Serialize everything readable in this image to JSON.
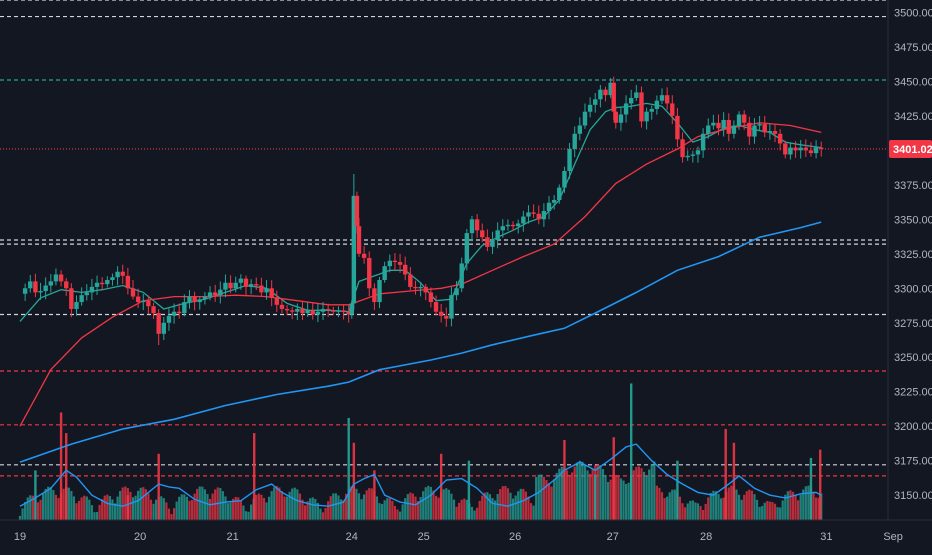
{
  "chart_data": {
    "type": "candlestick",
    "x_ticks": [
      "19",
      "20",
      "21",
      "24",
      "25",
      "26",
      "27",
      "28",
      "31",
      "Sep"
    ],
    "y_ticks": [
      "3150.00",
      "3175.00",
      "3200.00",
      "3225.00",
      "3250.00",
      "3275.00",
      "3300.00",
      "3325.00",
      "3350.00",
      "3375.00",
      "3400.00",
      "3425.00",
      "3450.00",
      "3475.00",
      "3500.00"
    ],
    "ylim": [
      3132,
      3509
    ],
    "last_price": "3401.02",
    "horizontal_levels": [
      {
        "value": 3509,
        "style": "dashed",
        "color": "#d1d4dc"
      },
      {
        "value": 3497,
        "style": "dashed",
        "color": "#d1d4dc"
      },
      {
        "value": 3451,
        "style": "dashed",
        "color": "#26a69a"
      },
      {
        "value": 3401.02,
        "style": "dotted",
        "color": "#f23645"
      },
      {
        "value": 3335,
        "style": "dashed",
        "color": "#d1d4dc"
      },
      {
        "value": 3332,
        "style": "dashed",
        "color": "#d1d4dc"
      },
      {
        "value": 3281,
        "style": "dashed",
        "color": "#d1d4dc"
      },
      {
        "value": 3240,
        "style": "dashed",
        "color": "#f23645"
      },
      {
        "value": 3201,
        "style": "dashed",
        "color": "#f23645"
      },
      {
        "value": 3172,
        "style": "dashed",
        "color": "#d1d4dc"
      },
      {
        "value": 3164,
        "style": "dashed",
        "color": "#f23645"
      }
    ],
    "price_path": [
      [
        0,
        3296
      ],
      [
        5,
        3300
      ],
      [
        10,
        3305
      ],
      [
        15,
        3297
      ],
      [
        20,
        3298
      ],
      [
        25,
        3302
      ],
      [
        30,
        3305
      ],
      [
        35,
        3310
      ],
      [
        40,
        3305
      ],
      [
        45,
        3300
      ],
      [
        50,
        3285
      ],
      [
        55,
        3290
      ],
      [
        60,
        3295
      ],
      [
        65,
        3297
      ],
      [
        70,
        3301
      ],
      [
        75,
        3304
      ],
      [
        80,
        3303
      ],
      [
        85,
        3306
      ],
      [
        90,
        3308
      ],
      [
        95,
        3312
      ],
      [
        100,
        3309
      ],
      [
        105,
        3300
      ],
      [
        110,
        3294
      ],
      [
        115,
        3290
      ],
      [
        120,
        3291
      ],
      [
        125,
        3287
      ],
      [
        130,
        3282
      ],
      [
        135,
        3267
      ],
      [
        140,
        3275
      ],
      [
        145,
        3280
      ],
      [
        150,
        3283
      ],
      [
        155,
        3282
      ],
      [
        160,
        3290
      ],
      [
        165,
        3294
      ],
      [
        170,
        3290
      ],
      [
        175,
        3292
      ],
      [
        180,
        3294
      ],
      [
        185,
        3297
      ],
      [
        190,
        3295
      ],
      [
        195,
        3299
      ],
      [
        200,
        3304
      ],
      [
        205,
        3300
      ],
      [
        210,
        3304
      ],
      [
        215,
        3307
      ],
      [
        220,
        3301
      ],
      [
        225,
        3303
      ],
      [
        230,
        3302
      ],
      [
        235,
        3297
      ],
      [
        240,
        3300
      ],
      [
        245,
        3293
      ],
      [
        250,
        3288
      ],
      [
        255,
        3285
      ],
      [
        260,
        3284
      ],
      [
        265,
        3283
      ],
      [
        270,
        3285
      ],
      [
        275,
        3282
      ],
      [
        280,
        3284
      ],
      [
        285,
        3281
      ],
      [
        290,
        3283
      ],
      [
        295,
        3285
      ],
      [
        300,
        3284
      ],
      [
        305,
        3283
      ],
      [
        310,
        3284
      ],
      [
        315,
        3283
      ],
      [
        320,
        3281
      ],
      [
        323,
        3289
      ],
      [
        325,
        3367
      ],
      [
        328,
        3345
      ],
      [
        330,
        3325
      ],
      [
        335,
        3322
      ],
      [
        340,
        3300
      ],
      [
        345,
        3290
      ],
      [
        350,
        3306
      ],
      [
        355,
        3316
      ],
      [
        360,
        3320
      ],
      [
        365,
        3319
      ],
      [
        370,
        3317
      ],
      [
        375,
        3310
      ],
      [
        380,
        3301
      ],
      [
        385,
        3300
      ],
      [
        390,
        3301
      ],
      [
        395,
        3297
      ],
      [
        400,
        3290
      ],
      [
        405,
        3283
      ],
      [
        410,
        3280
      ],
      [
        415,
        3278
      ],
      [
        420,
        3295
      ],
      [
        425,
        3300
      ],
      [
        430,
        3318
      ],
      [
        435,
        3340
      ],
      [
        440,
        3350
      ],
      [
        445,
        3342
      ],
      [
        450,
        3337
      ],
      [
        455,
        3330
      ],
      [
        460,
        3335
      ],
      [
        465,
        3342
      ],
      [
        470,
        3345
      ],
      [
        475,
        3346
      ],
      [
        480,
        3345
      ],
      [
        485,
        3347
      ],
      [
        490,
        3352
      ],
      [
        495,
        3355
      ],
      [
        500,
        3354
      ],
      [
        505,
        3350
      ],
      [
        510,
        3356
      ],
      [
        515,
        3362
      ],
      [
        520,
        3364
      ],
      [
        525,
        3373
      ],
      [
        530,
        3385
      ],
      [
        535,
        3401
      ],
      [
        540,
        3412
      ],
      [
        545,
        3418
      ],
      [
        550,
        3428
      ],
      [
        555,
        3433
      ],
      [
        560,
        3437
      ],
      [
        565,
        3444
      ],
      [
        570,
        3440
      ],
      [
        575,
        3449
      ],
      [
        578,
        3428
      ],
      [
        580,
        3420
      ],
      [
        585,
        3426
      ],
      [
        590,
        3434
      ],
      [
        595,
        3438
      ],
      [
        600,
        3442
      ],
      [
        605,
        3421
      ],
      [
        610,
        3428
      ],
      [
        615,
        3430
      ],
      [
        620,
        3436
      ],
      [
        625,
        3440
      ],
      [
        630,
        3434
      ],
      [
        635,
        3425
      ],
      [
        640,
        3408
      ],
      [
        645,
        3395
      ],
      [
        650,
        3396
      ],
      [
        655,
        3397
      ],
      [
        660,
        3400
      ],
      [
        665,
        3412
      ],
      [
        670,
        3418
      ],
      [
        675,
        3420
      ],
      [
        680,
        3416
      ],
      [
        685,
        3422
      ],
      [
        690,
        3412
      ],
      [
        695,
        3418
      ],
      [
        700,
        3426
      ],
      [
        705,
        3420
      ],
      [
        710,
        3410
      ],
      [
        715,
        3418
      ],
      [
        720,
        3419
      ],
      [
        725,
        3413
      ],
      [
        730,
        3414
      ],
      [
        735,
        3412
      ],
      [
        740,
        3405
      ],
      [
        745,
        3397
      ],
      [
        750,
        3402
      ],
      [
        755,
        3400
      ],
      [
        760,
        3402
      ],
      [
        765,
        3400
      ],
      [
        770,
        3398
      ],
      [
        775,
        3402
      ],
      [
        780,
        3401.02
      ]
    ],
    "series": [
      {
        "color": "#26a69a",
        "points": [
          [
            0,
            3276
          ],
          [
            20,
            3293
          ],
          [
            40,
            3299
          ],
          [
            60,
            3297
          ],
          [
            80,
            3299
          ],
          [
            100,
            3302
          ],
          [
            120,
            3297
          ],
          [
            140,
            3285
          ],
          [
            160,
            3289
          ],
          [
            180,
            3292
          ],
          [
            200,
            3297
          ],
          [
            220,
            3302
          ],
          [
            240,
            3300
          ],
          [
            260,
            3289
          ],
          [
            280,
            3284
          ],
          [
            300,
            3284
          ],
          [
            320,
            3283
          ],
          [
            330,
            3305
          ],
          [
            345,
            3309
          ],
          [
            360,
            3313
          ],
          [
            375,
            3313
          ],
          [
            390,
            3304
          ],
          [
            405,
            3291
          ],
          [
            420,
            3292
          ],
          [
            435,
            3318
          ],
          [
            450,
            3331
          ],
          [
            465,
            3337
          ],
          [
            480,
            3342
          ],
          [
            495,
            3348
          ],
          [
            510,
            3352
          ],
          [
            525,
            3364
          ],
          [
            540,
            3390
          ],
          [
            555,
            3415
          ],
          [
            570,
            3428
          ],
          [
            580,
            3431
          ],
          [
            595,
            3432
          ],
          [
            610,
            3434
          ],
          [
            625,
            3432
          ],
          [
            640,
            3420
          ],
          [
            655,
            3406
          ],
          [
            670,
            3410
          ],
          [
            685,
            3416
          ],
          [
            700,
            3418
          ],
          [
            715,
            3415
          ],
          [
            730,
            3413
          ],
          [
            745,
            3406
          ],
          [
            760,
            3404
          ],
          [
            780,
            3402
          ]
        ]
      },
      {
        "color": "#f23645",
        "points": [
          [
            0,
            3200
          ],
          [
            30,
            3241
          ],
          [
            60,
            3264
          ],
          [
            90,
            3279
          ],
          [
            120,
            3291
          ],
          [
            150,
            3294
          ],
          [
            180,
            3294
          ],
          [
            210,
            3295
          ],
          [
            240,
            3294
          ],
          [
            270,
            3291
          ],
          [
            300,
            3288
          ],
          [
            320,
            3288
          ],
          [
            350,
            3296
          ],
          [
            380,
            3298
          ],
          [
            410,
            3300
          ],
          [
            430,
            3303
          ],
          [
            460,
            3313
          ],
          [
            490,
            3323
          ],
          [
            520,
            3332
          ],
          [
            550,
            3352
          ],
          [
            580,
            3376
          ],
          [
            610,
            3390
          ],
          [
            640,
            3401
          ],
          [
            660,
            3410
          ],
          [
            690,
            3416
          ],
          [
            720,
            3420
          ],
          [
            750,
            3418
          ],
          [
            780,
            3413
          ]
        ]
      },
      {
        "color": "#2196f3",
        "points": [
          [
            0,
            3174
          ],
          [
            50,
            3187
          ],
          [
            100,
            3198
          ],
          [
            150,
            3205
          ],
          [
            200,
            3215
          ],
          [
            250,
            3223
          ],
          [
            300,
            3229
          ],
          [
            320,
            3232
          ],
          [
            350,
            3241
          ],
          [
            400,
            3248
          ],
          [
            430,
            3253
          ],
          [
            460,
            3259
          ],
          [
            500,
            3266
          ],
          [
            530,
            3271
          ],
          [
            560,
            3282
          ],
          [
            600,
            3297
          ],
          [
            640,
            3313
          ],
          [
            680,
            3323
          ],
          [
            720,
            3337
          ],
          [
            760,
            3344
          ],
          [
            780,
            3348
          ]
        ]
      }
    ],
    "volume": {
      "ma": [
        [
          0,
          3142
        ],
        [
          15,
          3148
        ],
        [
          30,
          3155
        ],
        [
          45,
          3168
        ],
        [
          55,
          3163
        ],
        [
          70,
          3150
        ],
        [
          85,
          3144
        ],
        [
          100,
          3142
        ],
        [
          115,
          3146
        ],
        [
          125,
          3152
        ],
        [
          135,
          3158
        ],
        [
          145,
          3156
        ],
        [
          155,
          3155
        ],
        [
          170,
          3147
        ],
        [
          185,
          3143
        ],
        [
          200,
          3145
        ],
        [
          215,
          3146
        ],
        [
          230,
          3154
        ],
        [
          245,
          3158
        ],
        [
          255,
          3152
        ],
        [
          270,
          3146
        ],
        [
          285,
          3143
        ],
        [
          300,
          3142
        ],
        [
          315,
          3145
        ],
        [
          325,
          3158
        ],
        [
          335,
          3162
        ],
        [
          345,
          3165
        ],
        [
          355,
          3150
        ],
        [
          370,
          3145
        ],
        [
          385,
          3143
        ],
        [
          400,
          3150
        ],
        [
          415,
          3161
        ],
        [
          430,
          3162
        ],
        [
          445,
          3155
        ],
        [
          460,
          3144
        ],
        [
          475,
          3142
        ],
        [
          490,
          3146
        ],
        [
          505,
          3152
        ],
        [
          520,
          3161
        ],
        [
          530,
          3168
        ],
        [
          545,
          3174
        ],
        [
          560,
          3168
        ],
        [
          575,
          3176
        ],
        [
          590,
          3185
        ],
        [
          600,
          3187
        ],
        [
          615,
          3175
        ],
        [
          630,
          3165
        ],
        [
          645,
          3158
        ],
        [
          660,
          3152
        ],
        [
          675,
          3150
        ],
        [
          690,
          3158
        ],
        [
          700,
          3164
        ],
        [
          715,
          3155
        ],
        [
          730,
          3150
        ],
        [
          745,
          3148
        ],
        [
          760,
          3151
        ],
        [
          775,
          3152
        ],
        [
          780,
          3150
        ]
      ],
      "high_bars": [
        [
          15,
          3168,
          "#26a69a"
        ],
        [
          40,
          3210,
          "#f23645"
        ],
        [
          45,
          3195,
          "#f23645"
        ],
        [
          105,
          3150,
          "#f23645"
        ],
        [
          135,
          3180,
          "#f23645"
        ],
        [
          228,
          3195,
          "#f23645"
        ],
        [
          320,
          3206,
          "#26a69a"
        ],
        [
          325,
          3188,
          "#f23645"
        ],
        [
          345,
          3168,
          "#f23645"
        ],
        [
          410,
          3180,
          "#f23645"
        ],
        [
          437,
          3175,
          "#26a69a"
        ],
        [
          530,
          3190,
          "#f23645"
        ],
        [
          560,
          3165,
          "#26a69a"
        ],
        [
          578,
          3192,
          "#f23645"
        ],
        [
          595,
          3231,
          "#26a69a"
        ],
        [
          640,
          3175,
          "#26a69a"
        ],
        [
          687,
          3198,
          "#f23645"
        ],
        [
          695,
          3188,
          "#f23645"
        ],
        [
          770,
          3177,
          "#26a69a"
        ],
        [
          779,
          3183,
          "#f23645"
        ]
      ]
    },
    "x_tick_positions": [
      0,
      117,
      207,
      323,
      393,
      482,
      577,
      668,
      785,
      850
    ],
    "title": "",
    "xlabel": "",
    "ylabel": ""
  }
}
